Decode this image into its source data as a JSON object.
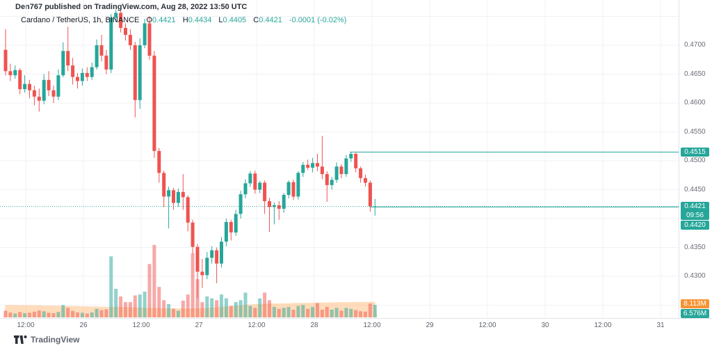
{
  "header": {
    "published": "Den767 published on TradingView.com, Aug 28, 2022 13:50 UTC"
  },
  "legend": {
    "symbol": "Cardano / TetherUS, 1h, BINANCE",
    "o_label": "O",
    "o": "0.4421",
    "h_label": "H",
    "h": "0.4434",
    "l_label": "L",
    "l": "0.4405",
    "c_label": "C",
    "c": "0.4421",
    "change": "-0.0001 (-0.02%)"
  },
  "badges": {
    "level_line_1": "0.4515",
    "last_price": "0.4421",
    "countdown": "09:56",
    "level_line_2": "0.4420",
    "volume_ma": "8.113M",
    "volume_current": "6.576M"
  },
  "footer": {
    "logo_text": "TradingView"
  },
  "colors": {
    "up": "#26a69a",
    "down": "#ef5350",
    "line": "#26a69a",
    "grid": "#f0f2f7",
    "axis_border": "#e0e3eb",
    "band": "#ff9532",
    "badge_orange": "#f59435"
  },
  "price_axis": {
    "labels": [
      {
        "text": "0.4700",
        "price": 0.47
      },
      {
        "text": "0.4650",
        "price": 0.465
      },
      {
        "text": "0.4600",
        "price": 0.46
      },
      {
        "text": "0.4550",
        "price": 0.455
      },
      {
        "text": "0.4500",
        "price": 0.45
      },
      {
        "text": "0.4450",
        "price": 0.445
      },
      {
        "text": "0.4350",
        "price": 0.435
      },
      {
        "text": "0.4300",
        "price": 0.43
      }
    ]
  },
  "time_axis": {
    "labels": [
      "12:00",
      "26",
      "12:00",
      "27",
      "12:00",
      "28",
      "12:00",
      "29",
      "12:00",
      "30",
      "12:00",
      "31"
    ]
  },
  "chart_data": {
    "type": "candlestick",
    "title": "Cardano / TetherUS",
    "interval": "1h",
    "exchange": "BINANCE",
    "quote_unit": "USDT",
    "price_gridlines": [
      0.475,
      0.47,
      0.465,
      0.46,
      0.455,
      0.45,
      0.445,
      0.44,
      0.435,
      0.43,
      0.425
    ],
    "time_ticks": [
      "12:00",
      "26",
      "12:00",
      "27",
      "12:00",
      "28",
      "12:00",
      "29",
      "12:00",
      "30",
      "12:00",
      "31"
    ],
    "price_lines": [
      {
        "price": 0.4515,
        "style": "solid"
      },
      {
        "price": 0.442,
        "style": "solid"
      },
      {
        "price": 0.4421,
        "style": "dotted"
      }
    ],
    "last": {
      "o": 0.4421,
      "h": 0.4434,
      "l": 0.4405,
      "c": 0.4421,
      "change": -0.0001,
      "change_pct": -0.02,
      "countdown": "09:56",
      "volume_m": 6.576,
      "volume_ma_m": 8.113
    },
    "candles": [
      [
        0.4692,
        0.4728,
        0.4648,
        0.4655,
        3.5
      ],
      [
        0.4655,
        0.4668,
        0.4638,
        0.4648,
        2.5
      ],
      [
        0.4648,
        0.4665,
        0.4642,
        0.4657,
        2.0
      ],
      [
        0.4657,
        0.466,
        0.4615,
        0.4624,
        2.8
      ],
      [
        0.4624,
        0.4648,
        0.4618,
        0.4633,
        2.2
      ],
      [
        0.4633,
        0.464,
        0.4608,
        0.4622,
        2.4
      ],
      [
        0.4622,
        0.463,
        0.4596,
        0.4611,
        3.0
      ],
      [
        0.4611,
        0.4625,
        0.4585,
        0.4604,
        3.6
      ],
      [
        0.4604,
        0.465,
        0.4598,
        0.464,
        3.2
      ],
      [
        0.464,
        0.4655,
        0.4612,
        0.4622,
        2.4
      ],
      [
        0.4622,
        0.463,
        0.46,
        0.4611,
        2.2
      ],
      [
        0.4611,
        0.4658,
        0.4605,
        0.4648,
        2.8
      ],
      [
        0.4648,
        0.4705,
        0.4645,
        0.469,
        6.5
      ],
      [
        0.469,
        0.4732,
        0.4655,
        0.4665,
        5.0
      ],
      [
        0.4665,
        0.4678,
        0.4632,
        0.4645,
        3.4
      ],
      [
        0.4645,
        0.4652,
        0.4625,
        0.4638,
        2.6
      ],
      [
        0.4638,
        0.466,
        0.463,
        0.4652,
        2.4
      ],
      [
        0.4652,
        0.4662,
        0.4638,
        0.4645,
        2.0
      ],
      [
        0.4645,
        0.467,
        0.464,
        0.4662,
        2.6
      ],
      [
        0.4662,
        0.471,
        0.4658,
        0.47,
        4.5
      ],
      [
        0.47,
        0.4718,
        0.4672,
        0.4682,
        3.8
      ],
      [
        0.4682,
        0.4692,
        0.465,
        0.4658,
        4.2
      ],
      [
        0.4658,
        0.4754,
        0.4652,
        0.4748,
        32.0
      ],
      [
        0.4748,
        0.4762,
        0.474,
        0.4756,
        15.0
      ],
      [
        0.4756,
        0.476,
        0.4722,
        0.473,
        11.0
      ],
      [
        0.473,
        0.4738,
        0.4708,
        0.4718,
        8.0
      ],
      [
        0.4718,
        0.4728,
        0.4692,
        0.47,
        8.0
      ],
      [
        0.47,
        0.4706,
        0.4575,
        0.4605,
        11.5
      ],
      [
        0.4605,
        0.4712,
        0.459,
        0.47,
        12.0
      ],
      [
        0.47,
        0.4746,
        0.4695,
        0.4738,
        13.5
      ],
      [
        0.4738,
        0.475,
        0.4675,
        0.4682,
        28.0
      ],
      [
        0.4682,
        0.469,
        0.4505,
        0.4517,
        38.0
      ],
      [
        0.4517,
        0.4522,
        0.4462,
        0.4479,
        16.0
      ],
      [
        0.4479,
        0.4483,
        0.442,
        0.4438,
        9.0
      ],
      [
        0.4438,
        0.4455,
        0.4383,
        0.4449,
        7.0
      ],
      [
        0.4449,
        0.4453,
        0.4415,
        0.4427,
        4.5
      ],
      [
        0.4427,
        0.4452,
        0.442,
        0.4446,
        3.5
      ],
      [
        0.4446,
        0.4477,
        0.4415,
        0.4437,
        8.8
      ],
      [
        0.4437,
        0.444,
        0.4378,
        0.4393,
        12.0
      ],
      [
        0.4393,
        0.4398,
        0.4338,
        0.4351,
        33.5
      ],
      [
        0.4351,
        0.4356,
        0.4262,
        0.4308,
        20.0
      ],
      [
        0.4308,
        0.433,
        0.428,
        0.4302,
        8.0
      ],
      [
        0.4302,
        0.4342,
        0.4295,
        0.4332,
        11.0
      ],
      [
        0.4332,
        0.4352,
        0.4322,
        0.4345,
        10.0
      ],
      [
        0.4345,
        0.435,
        0.4288,
        0.4322,
        9.0
      ],
      [
        0.4322,
        0.4368,
        0.4315,
        0.436,
        12.0
      ],
      [
        0.436,
        0.44,
        0.4352,
        0.4394,
        10.0
      ],
      [
        0.4394,
        0.4398,
        0.4362,
        0.4376,
        6.0
      ],
      [
        0.4376,
        0.4415,
        0.437,
        0.4408,
        8.0
      ],
      [
        0.4408,
        0.4448,
        0.44,
        0.4442,
        9.0
      ],
      [
        0.4442,
        0.4468,
        0.4435,
        0.4461,
        13.0
      ],
      [
        0.4461,
        0.4482,
        0.4455,
        0.4478,
        6.0
      ],
      [
        0.4478,
        0.4483,
        0.4443,
        0.445,
        5.0
      ],
      [
        0.445,
        0.4465,
        0.4444,
        0.4462,
        10.0
      ],
      [
        0.4462,
        0.4466,
        0.4408,
        0.443,
        13.0
      ],
      [
        0.443,
        0.4436,
        0.4377,
        0.442,
        9.0
      ],
      [
        0.442,
        0.4428,
        0.439,
        0.4423,
        5.5
      ],
      [
        0.4423,
        0.443,
        0.4398,
        0.4417,
        4.5
      ],
      [
        0.4417,
        0.4444,
        0.441,
        0.4441,
        5.0
      ],
      [
        0.4441,
        0.4466,
        0.4435,
        0.4463,
        5.5
      ],
      [
        0.4463,
        0.4468,
        0.4432,
        0.4438,
        4.0
      ],
      [
        0.4438,
        0.4482,
        0.4433,
        0.4479,
        6.0
      ],
      [
        0.4479,
        0.4498,
        0.4472,
        0.4493,
        6.5
      ],
      [
        0.4493,
        0.4502,
        0.4484,
        0.4488,
        4.5
      ],
      [
        0.4488,
        0.4505,
        0.448,
        0.4496,
        5.5
      ],
      [
        0.4496,
        0.4512,
        0.4482,
        0.449,
        7.5
      ],
      [
        0.449,
        0.4543,
        0.4468,
        0.4477,
        4.0
      ],
      [
        0.4477,
        0.4482,
        0.4429,
        0.4458,
        5.5
      ],
      [
        0.4458,
        0.4472,
        0.445,
        0.4467,
        4.0
      ],
      [
        0.4467,
        0.4497,
        0.4462,
        0.449,
        5.0
      ],
      [
        0.449,
        0.4494,
        0.447,
        0.4477,
        3.5
      ],
      [
        0.4477,
        0.451,
        0.4472,
        0.4504,
        5.0
      ],
      [
        0.4504,
        0.4515,
        0.4498,
        0.4512,
        4.5
      ],
      [
        0.4512,
        0.4514,
        0.448,
        0.4487,
        3.8
      ],
      [
        0.4487,
        0.449,
        0.4462,
        0.447,
        3.2
      ],
      [
        0.447,
        0.4476,
        0.4455,
        0.4462,
        3.0
      ],
      [
        0.4462,
        0.4466,
        0.4412,
        0.4421,
        7.2
      ],
      [
        0.4421,
        0.4434,
        0.4405,
        0.4421,
        6.576
      ]
    ],
    "volume_ma": [
      6.5,
      6.5,
      6.5,
      6.4,
      6.4,
      6.4,
      6.3,
      6.3,
      6.2,
      6.2,
      6.1,
      6.1,
      6.0,
      6.0,
      5.9,
      5.9,
      5.8,
      5.8,
      5.7,
      5.7,
      5.6,
      5.6,
      5.6,
      5.5,
      5.5,
      5.4,
      5.4,
      5.3,
      5.2,
      5.1,
      5.0,
      5.0,
      4.9,
      4.8,
      4.8,
      4.7,
      4.7,
      4.6,
      4.6,
      4.7,
      4.8,
      4.9,
      5.0,
      5.2,
      5.4,
      5.6,
      5.8,
      6.0,
      6.2,
      6.4,
      6.6,
      6.8,
      6.9,
      7.0,
      7.1,
      7.2,
      7.3,
      7.3,
      7.4,
      7.4,
      7.5,
      7.5,
      7.6,
      7.6,
      7.7,
      7.7,
      7.8,
      7.8,
      7.9,
      7.9,
      8.0,
      8.0,
      8.0,
      8.05,
      8.08,
      8.1,
      8.11,
      8.113
    ]
  }
}
